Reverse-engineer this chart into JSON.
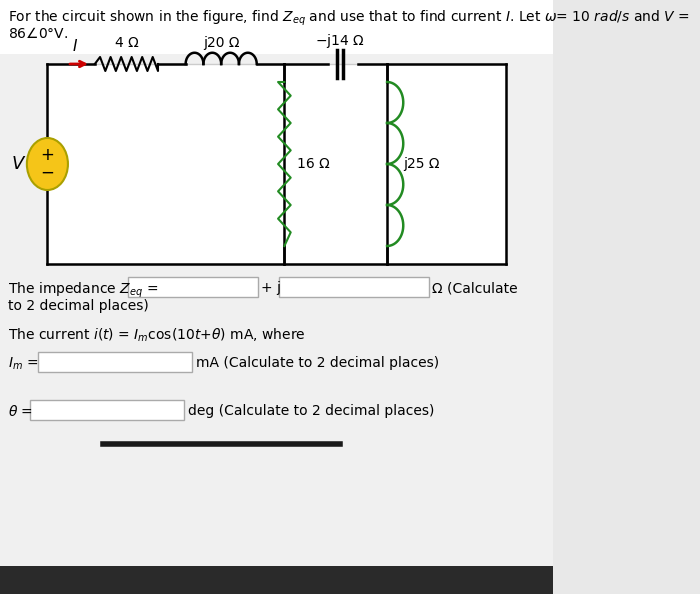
{
  "bg_color": "#e8e8e8",
  "content_bg": "#f0f0f0",
  "white": "#ffffff",
  "wire_color": "#000000",
  "arrow_color": "#cc0000",
  "source_circle_color": "#f5c518",
  "source_border_color": "#aaa000",
  "green_color": "#228B22",
  "box_edge": "#aaaaaa",
  "bottom_bar_color": "#1a1a1a",
  "dark_strip_color": "#2a2a2a",
  "font_size_title": 10,
  "font_size_body": 10,
  "font_size_label": 10,
  "title_line1": "For the circuit shown in the figure, find $Z_{eq}$ and use that to find current $I$. Let $\\omega$= 10 $rad/s$ and $V$ =",
  "title_line2": "86$\\angle$0°V.",
  "imp_text1": "The impedance $Z_{eq}$ =",
  "imp_text2": "+ j",
  "imp_text3": "Ω (Calculate",
  "imp_text4": "to 2 decimal places)",
  "curr_text": "The current $i(t)$ = $I_m$cos(10$t$+$\\theta$) mA, where",
  "im_label": "$I_m$ =",
  "im_unit": "mA (Calculate to 2 decimal places)",
  "theta_label": "$\\theta$ =",
  "theta_unit": "deg (Calculate to 2 decimal places)"
}
